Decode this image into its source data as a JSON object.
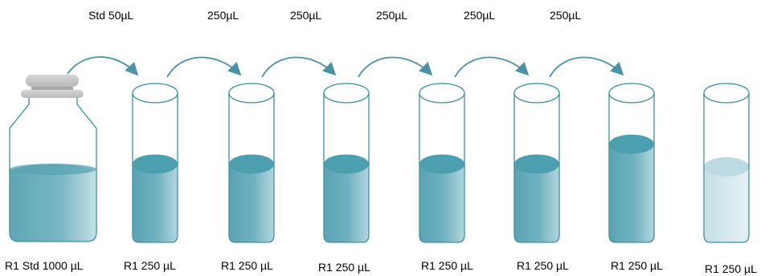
{
  "transfer_labels": [
    "Std 50µL",
    "250µL",
    "250µL",
    "250µL",
    "250µL",
    "250µL"
  ],
  "containers": [
    {
      "label": "R1 Std 1000 µL",
      "kind": "bottle",
      "fill_level": 0.38
    },
    {
      "label": "R1 250 µL",
      "kind": "tube",
      "fill_level": 0.5
    },
    {
      "label": "R1 250 µL",
      "kind": "tube",
      "fill_level": 0.5
    },
    {
      "label": "R1 250 µL",
      "kind": "tube",
      "fill_level": 0.5
    },
    {
      "label": "R1 250 µL",
      "kind": "tube",
      "fill_level": 0.5
    },
    {
      "label": "R1 250 µL",
      "kind": "tube",
      "fill_level": 0.5
    },
    {
      "label": "R1 250 µL",
      "kind": "tube",
      "fill_level": 0.64
    },
    {
      "label": "R1 250 µL",
      "kind": "tube",
      "fill_level": 0.48,
      "pale": true
    }
  ],
  "colors": {
    "liquid": "#5aa6b6",
    "liquid_top": "#4c9fae",
    "liquid_pale": "#c9e2e8",
    "liquid_pale_top": "#bcdae1",
    "outline": "#3e8fa0",
    "arrow": "#4a93a6",
    "cap": "#c9c9c9"
  }
}
